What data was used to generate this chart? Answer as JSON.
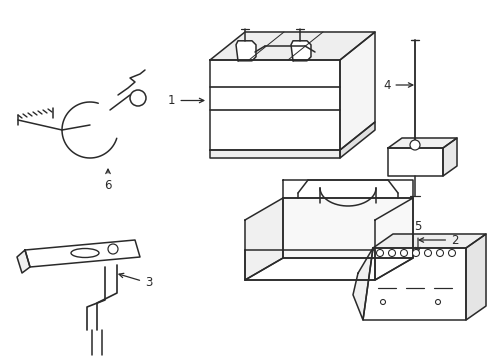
{
  "background_color": "#ffffff",
  "line_color": "#2a2a2a",
  "line_width": 1.1,
  "label_fontsize": 8.5,
  "fig_width": 4.89,
  "fig_height": 3.6,
  "fig_dpi": 100
}
